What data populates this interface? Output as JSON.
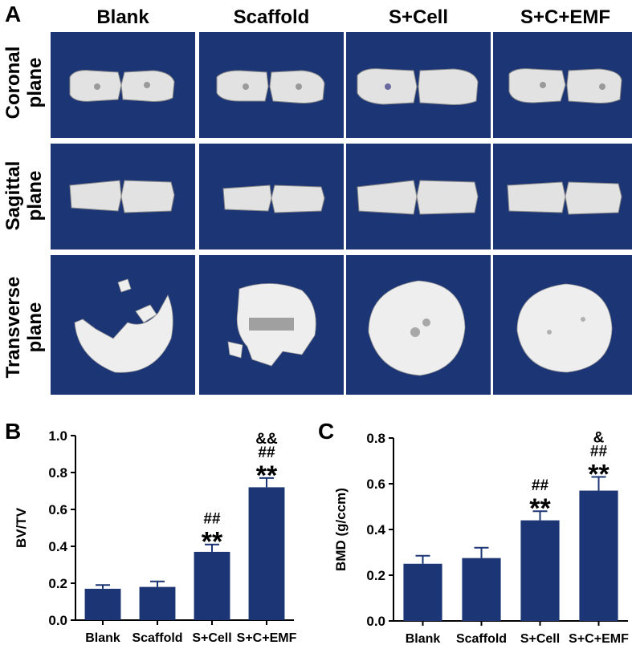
{
  "panel_a": {
    "label": "A",
    "columns": [
      "Blank",
      "Scaffold",
      "S+Cell",
      "S+C+EMF"
    ],
    "rows": [
      {
        "line1": "Coronal",
        "line2": "plane"
      },
      {
        "line1": "Sagittal",
        "line2": "plane"
      },
      {
        "line1": "Transverse",
        "line2": "plane"
      }
    ],
    "colors": {
      "tile_background": "#1c3574",
      "bone": "#e4e4e4"
    }
  },
  "chart_data": [
    {
      "panel": "B",
      "type": "bar",
      "categories": [
        "Blank",
        "Scaffold",
        "S+Cell",
        "S+C+EMF"
      ],
      "values": [
        0.17,
        0.18,
        0.37,
        0.72
      ],
      "errors": [
        0.02,
        0.03,
        0.04,
        0.05
      ],
      "annotations": [
        [],
        [],
        [
          "##",
          "**"
        ],
        [
          "&&",
          "##",
          "**"
        ]
      ],
      "ylabel": "BV/TV",
      "ylim": [
        0,
        1.0
      ],
      "yticks": [
        "0.0",
        "0.2",
        "0.4",
        "0.6",
        "0.8",
        "1.0"
      ],
      "bar_color": "#1c3574",
      "grid": false
    },
    {
      "panel": "C",
      "type": "bar",
      "categories": [
        "Blank",
        "Scaffold",
        "S+Cell",
        "S+C+EMF"
      ],
      "values": [
        0.25,
        0.275,
        0.44,
        0.57
      ],
      "errors": [
        0.035,
        0.045,
        0.04,
        0.06
      ],
      "annotations": [
        [],
        [],
        [
          "##",
          "**"
        ],
        [
          "&",
          "##",
          "**"
        ]
      ],
      "ylabel": "BMD (g/ccm)",
      "ylim": [
        0,
        0.8
      ],
      "yticks": [
        "0.0",
        "0.2",
        "0.4",
        "0.6",
        "0.8"
      ],
      "bar_color": "#1c3574",
      "grid": false
    }
  ]
}
